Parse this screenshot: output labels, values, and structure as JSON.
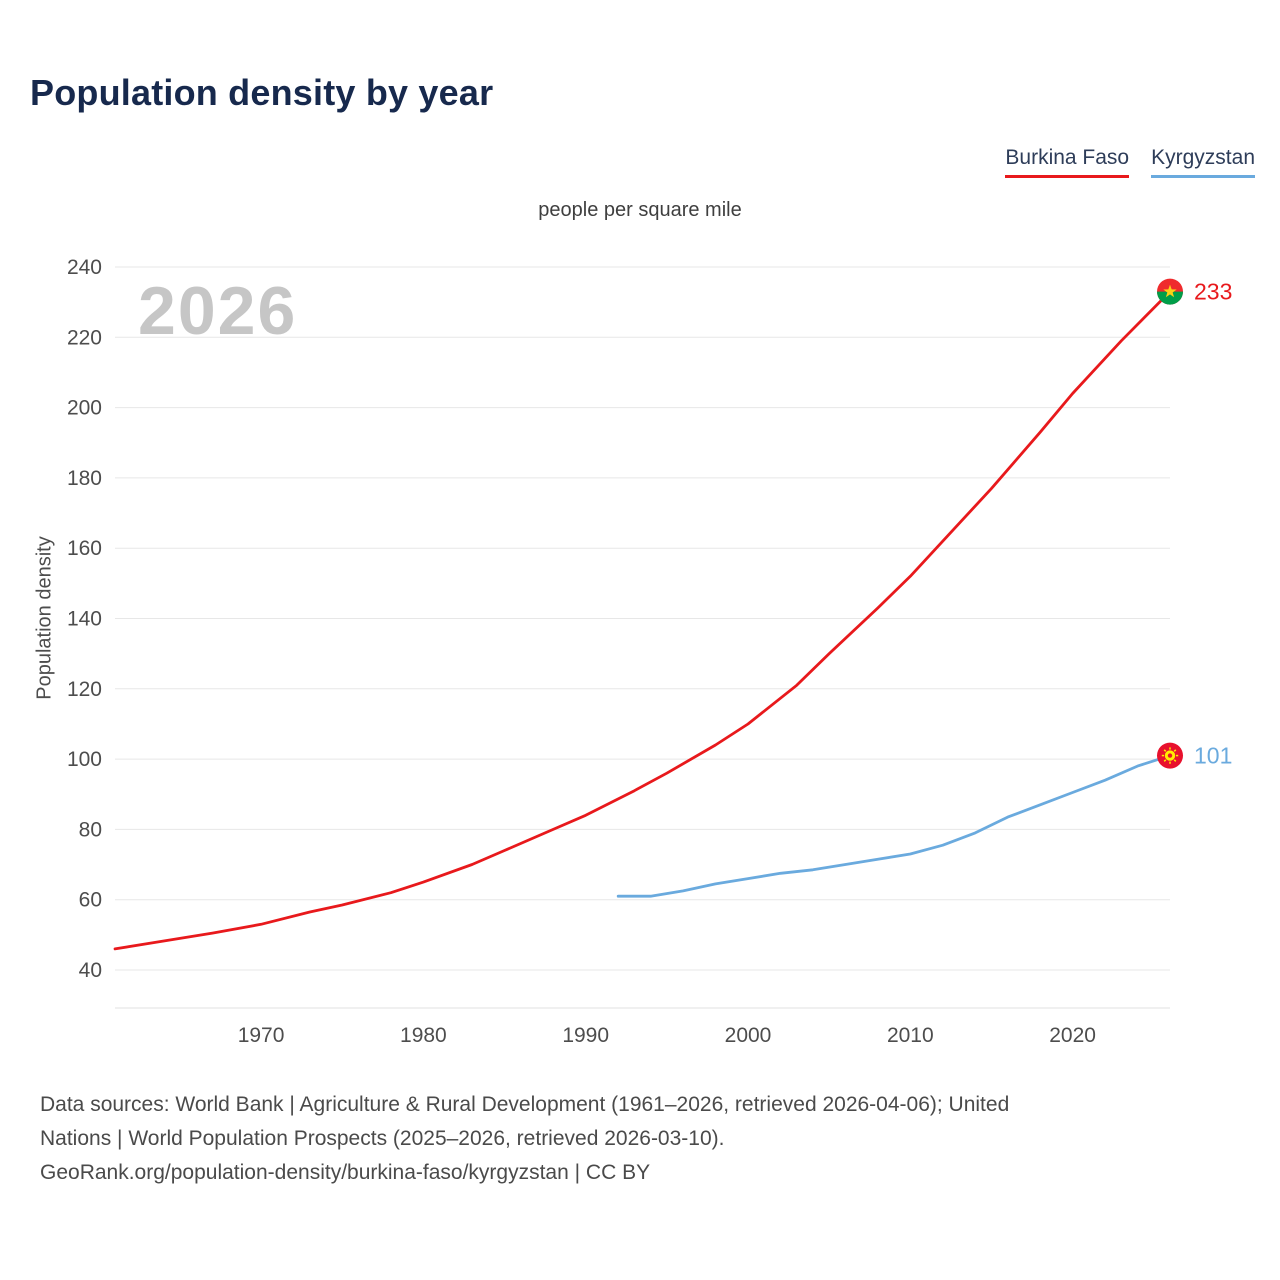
{
  "page": {
    "title": "Population density by year",
    "subtitle": "people per square mile",
    "watermark": "2026",
    "y_axis_label": "Population density"
  },
  "footer": {
    "lines": [
      "Data sources: World Bank | Agriculture & Rural Development (1961–2026, retrieved 2026-04-06); United",
      "Nations | World Population Prospects (2025–2026, retrieved 2026-03-10).",
      "GeoRank.org/population-density/burkina-faso/kyrgyzstan | CC BY"
    ]
  },
  "colors": {
    "title": "#17294d",
    "axis_text": "#4d4d4d",
    "gridline": "#e7e7e7",
    "watermark": "#c6c6c6"
  },
  "flags": {
    "burkina_faso": {
      "top": "#ef2b2d",
      "bottom": "#009e49",
      "star": "#fcd116"
    },
    "kyrgyzstan": {
      "field": "#e8112d",
      "sun": "#ffec00"
    }
  },
  "chart_data": {
    "type": "line",
    "title": "Population density by year",
    "subtitle": "people per square mile",
    "xlabel": "",
    "ylabel": "Population density",
    "xlim": [
      1961,
      2026
    ],
    "ylim": [
      40,
      240
    ],
    "yticks": [
      40,
      60,
      80,
      100,
      120,
      140,
      160,
      180,
      200,
      220,
      240
    ],
    "xticks": [
      1970,
      1980,
      1990,
      2000,
      2010,
      2020
    ],
    "grid": "horizontal",
    "legend_position": "top-right",
    "series": [
      {
        "name": "Burkina Faso",
        "color": "#e8191c",
        "end_label": "233",
        "end_value": 233,
        "marker": "burkina-faso-flag",
        "points": [
          [
            1961,
            46
          ],
          [
            1963,
            47.5
          ],
          [
            1965,
            49
          ],
          [
            1967,
            50.5
          ],
          [
            1970,
            53
          ],
          [
            1973,
            56.5
          ],
          [
            1975,
            58.5
          ],
          [
            1978,
            62
          ],
          [
            1980,
            65
          ],
          [
            1983,
            70
          ],
          [
            1985,
            74
          ],
          [
            1988,
            80
          ],
          [
            1990,
            84
          ],
          [
            1993,
            91
          ],
          [
            1995,
            96
          ],
          [
            1998,
            104
          ],
          [
            2000,
            110
          ],
          [
            2003,
            121
          ],
          [
            2005,
            130
          ],
          [
            2008,
            143
          ],
          [
            2010,
            152
          ],
          [
            2013,
            167
          ],
          [
            2015,
            177
          ],
          [
            2018,
            193
          ],
          [
            2020,
            204
          ],
          [
            2023,
            219
          ],
          [
            2026,
            233
          ]
        ]
      },
      {
        "name": "Kyrgyzstan",
        "color": "#6aaade",
        "end_label": "101",
        "end_value": 101,
        "marker": "kyrgyzstan-flag",
        "points": [
          [
            1992,
            61
          ],
          [
            1994,
            61
          ],
          [
            1996,
            62.5
          ],
          [
            1998,
            64.5
          ],
          [
            2000,
            66
          ],
          [
            2002,
            67.5
          ],
          [
            2004,
            68.5
          ],
          [
            2006,
            70
          ],
          [
            2008,
            71.5
          ],
          [
            2010,
            73
          ],
          [
            2012,
            75.5
          ],
          [
            2014,
            79
          ],
          [
            2016,
            83.5
          ],
          [
            2018,
            87
          ],
          [
            2020,
            90.5
          ],
          [
            2022,
            94
          ],
          [
            2024,
            98
          ],
          [
            2026,
            101
          ]
        ]
      }
    ]
  }
}
